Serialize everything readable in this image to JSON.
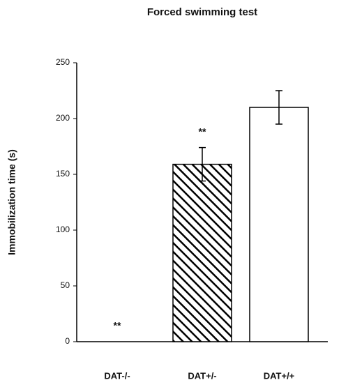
{
  "chart_data": {
    "type": "bar",
    "title": "Forced swimming test",
    "y_label": "Immobilization time (s)",
    "categories": [
      "DAT-/-",
      "DAT+/-",
      "DAT+/+"
    ],
    "values": [
      0,
      159,
      210
    ],
    "errors": [
      0,
      15,
      15
    ],
    "bar_styles": [
      "solid",
      "hatched",
      "open"
    ],
    "color": "#000000",
    "annotations": [
      {
        "category": "DAT-/-",
        "text": "**"
      },
      {
        "category": "DAT+/-",
        "text": "**"
      }
    ],
    "ylim": [
      0,
      250
    ],
    "yticks": [
      0,
      50,
      100,
      150,
      200,
      250
    ],
    "grid": false
  }
}
